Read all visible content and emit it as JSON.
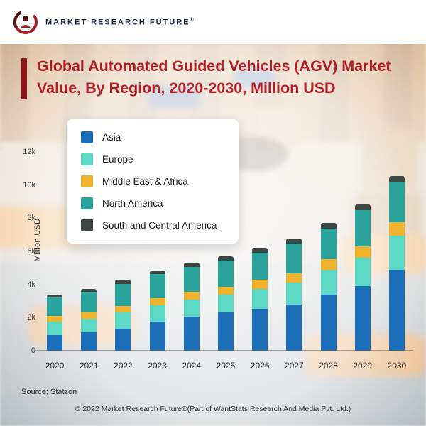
{
  "header": {
    "brand": "MARKET RESEARCH FUTURE",
    "registered_mark": "®"
  },
  "title": {
    "line1": "Global Automated Guided Vehicles (AGV) Market",
    "line2": "Value, By Region, 2020-2030, Million USD"
  },
  "source": "Source: Statzon",
  "footer": "© 2022 Market Research Future®(Part of WantStats Research And Media Pvt. Ltd.)",
  "chart_data": {
    "type": "bar",
    "stacked": true,
    "title": "Global Automated Guided Vehicles (AGV) Market Value, By Region, 2020-2030, Million USD",
    "xlabel": "",
    "ylabel": "Million USD",
    "ylim": [
      0,
      12000
    ],
    "yticks": [
      "0",
      "2k",
      "4k",
      "6k",
      "8k",
      "10k",
      "12k"
    ],
    "grid": false,
    "legend_position": "upper-left",
    "categories": [
      "2020",
      "2021",
      "2022",
      "2023",
      "2024",
      "2025",
      "2026",
      "2027",
      "2028",
      "2029",
      "2030"
    ],
    "series": [
      {
        "name": "Asia",
        "color": "#1a6db6",
        "values": [
          950,
          1100,
          1350,
          1750,
          2050,
          2300,
          2550,
          2800,
          3400,
          3900,
          4900
        ]
      },
      {
        "name": "Europe",
        "color": "#5cd9c5",
        "values": [
          800,
          850,
          950,
          1000,
          1050,
          1100,
          1200,
          1300,
          1500,
          1700,
          2050
        ]
      },
      {
        "name": "Middle East & Africa",
        "color": "#f0b12c",
        "values": [
          350,
          350,
          400,
          420,
          450,
          480,
          520,
          560,
          640,
          700,
          800
        ]
      },
      {
        "name": "North America",
        "color": "#29a39b",
        "values": [
          1100,
          1250,
          1350,
          1450,
          1500,
          1550,
          1650,
          1800,
          1850,
          2200,
          2450
        ]
      },
      {
        "name": "South and Central America",
        "color": "#3d4742",
        "values": [
          200,
          200,
          230,
          240,
          250,
          260,
          280,
          300,
          310,
          320,
          350
        ]
      }
    ]
  }
}
